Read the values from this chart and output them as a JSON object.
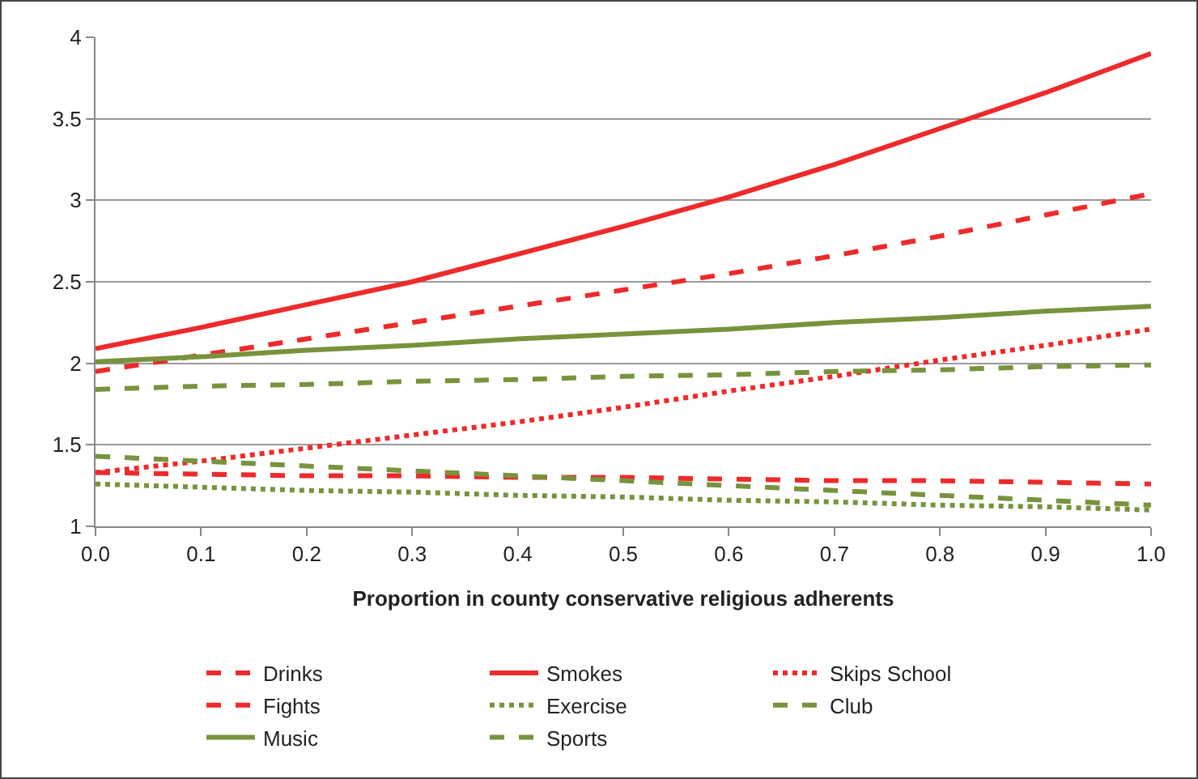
{
  "chart_data": {
    "type": "line",
    "xlabel": "Proportion in county conservative religious adherents",
    "x": [
      0,
      0.1,
      0.2,
      0.3,
      0.4,
      0.5,
      0.6,
      0.7,
      0.8,
      0.9,
      1
    ],
    "xlim": [
      0,
      1
    ],
    "xticks": [
      {
        "value": 0,
        "label": "0.0"
      },
      {
        "value": 0.1,
        "label": "0.1"
      },
      {
        "value": 0.2,
        "label": "0.2"
      },
      {
        "value": 0.3,
        "label": "0.3"
      },
      {
        "value": 0.4,
        "label": "0.4"
      },
      {
        "value": 0.5,
        "label": "0.5"
      },
      {
        "value": 0.6,
        "label": "0.6"
      },
      {
        "value": 0.7,
        "label": "0.7"
      },
      {
        "value": 0.8,
        "label": "0.8"
      },
      {
        "value": 0.9,
        "label": "0.9"
      },
      {
        "value": 1,
        "label": "1.0"
      }
    ],
    "ylim": [
      1,
      4
    ],
    "yticks": [
      1,
      1.5,
      2,
      2.5,
      3,
      3.5,
      4
    ],
    "grid": "y",
    "legend": "bottom",
    "marker": "none",
    "series": [
      {
        "name": "Drinks",
        "color": "#ee2a2a",
        "line_style": "dashed",
        "values": [
          1.95,
          2.05,
          2.15,
          2.25,
          2.35,
          2.45,
          2.55,
          2.66,
          2.78,
          2.91,
          3.04
        ]
      },
      {
        "name": "Smokes",
        "color": "#ee2a2a",
        "line_style": "solid",
        "values": [
          2.09,
          2.22,
          2.36,
          2.5,
          2.67,
          2.84,
          3.02,
          3.22,
          3.44,
          3.66,
          3.9
        ]
      },
      {
        "name": "Skips School",
        "color": "#ee2a2a",
        "line_style": "dotted",
        "values": [
          1.33,
          1.4,
          1.48,
          1.56,
          1.64,
          1.73,
          1.83,
          1.92,
          2.02,
          2.11,
          2.21
        ]
      },
      {
        "name": "Fights",
        "color": "#ee2a2a",
        "line_style": "dashed",
        "values": [
          1.33,
          1.32,
          1.31,
          1.31,
          1.3,
          1.3,
          1.29,
          1.28,
          1.28,
          1.27,
          1.26
        ]
      },
      {
        "name": "Exercise",
        "color": "#77933c",
        "line_style": "dotted",
        "values": [
          1.26,
          1.24,
          1.22,
          1.21,
          1.19,
          1.18,
          1.16,
          1.15,
          1.13,
          1.12,
          1.1
        ]
      },
      {
        "name": "Club",
        "color": "#77933c",
        "line_style": "dashed",
        "values": [
          1.43,
          1.4,
          1.37,
          1.34,
          1.31,
          1.28,
          1.25,
          1.22,
          1.19,
          1.16,
          1.13
        ]
      },
      {
        "name": "Music",
        "color": "#77933c",
        "line_style": "solid",
        "values": [
          2.01,
          2.04,
          2.08,
          2.11,
          2.15,
          2.18,
          2.21,
          2.25,
          2.28,
          2.32,
          2.35
        ]
      },
      {
        "name": "Sports",
        "color": "#77933c",
        "line_style": "dashed",
        "values": [
          1.84,
          1.86,
          1.87,
          1.89,
          1.9,
          1.92,
          1.93,
          1.95,
          1.96,
          1.98,
          1.99
        ]
      }
    ]
  }
}
